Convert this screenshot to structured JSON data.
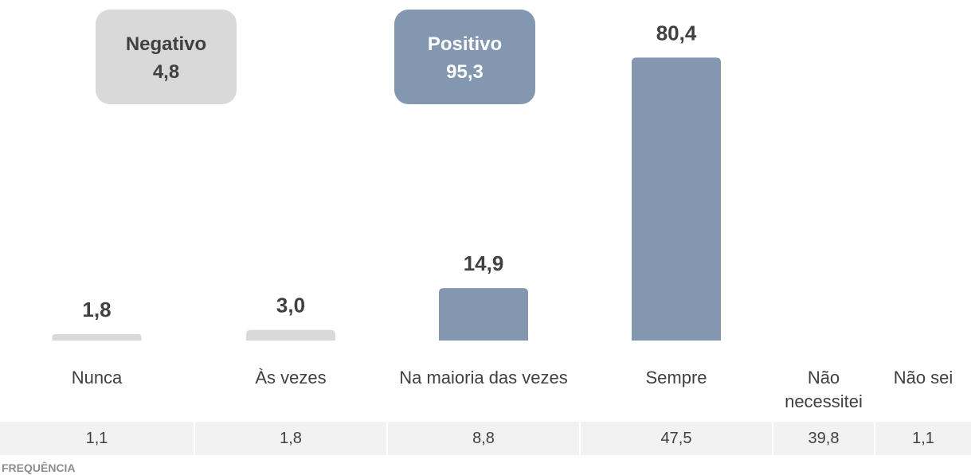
{
  "chart_data": {
    "type": "bar",
    "categories": [
      "Nunca",
      "Às vezes",
      "Na maioria das vezes",
      "Sempre",
      "Não necessitei",
      "Não sei"
    ],
    "values": [
      1.8,
      3.0,
      14.9,
      80.4,
      null,
      null
    ],
    "value_labels": [
      "1,8",
      "3,0",
      "14,9",
      "80,4",
      null,
      null
    ],
    "colors": [
      "#d9d9d9",
      "#d9d9d9",
      "#8497b0",
      "#8497b0",
      null,
      null
    ],
    "ylim": [
      0,
      85
    ],
    "summary": [
      {
        "label": "Negativo",
        "value": 4.8,
        "value_label": "4,8",
        "color": "#d9d9d9"
      },
      {
        "label": "Positivo",
        "value": 95.3,
        "value_label": "95,3",
        "color": "#8497b0"
      }
    ],
    "frequency": {
      "title": "FREQUÊNCIA",
      "values": [
        1.1,
        1.8,
        8.8,
        47.5,
        39.8,
        1.1
      ],
      "value_labels": [
        "1,1",
        "1,8",
        "8,8",
        "47,5",
        "39,8",
        "1,1"
      ]
    }
  }
}
